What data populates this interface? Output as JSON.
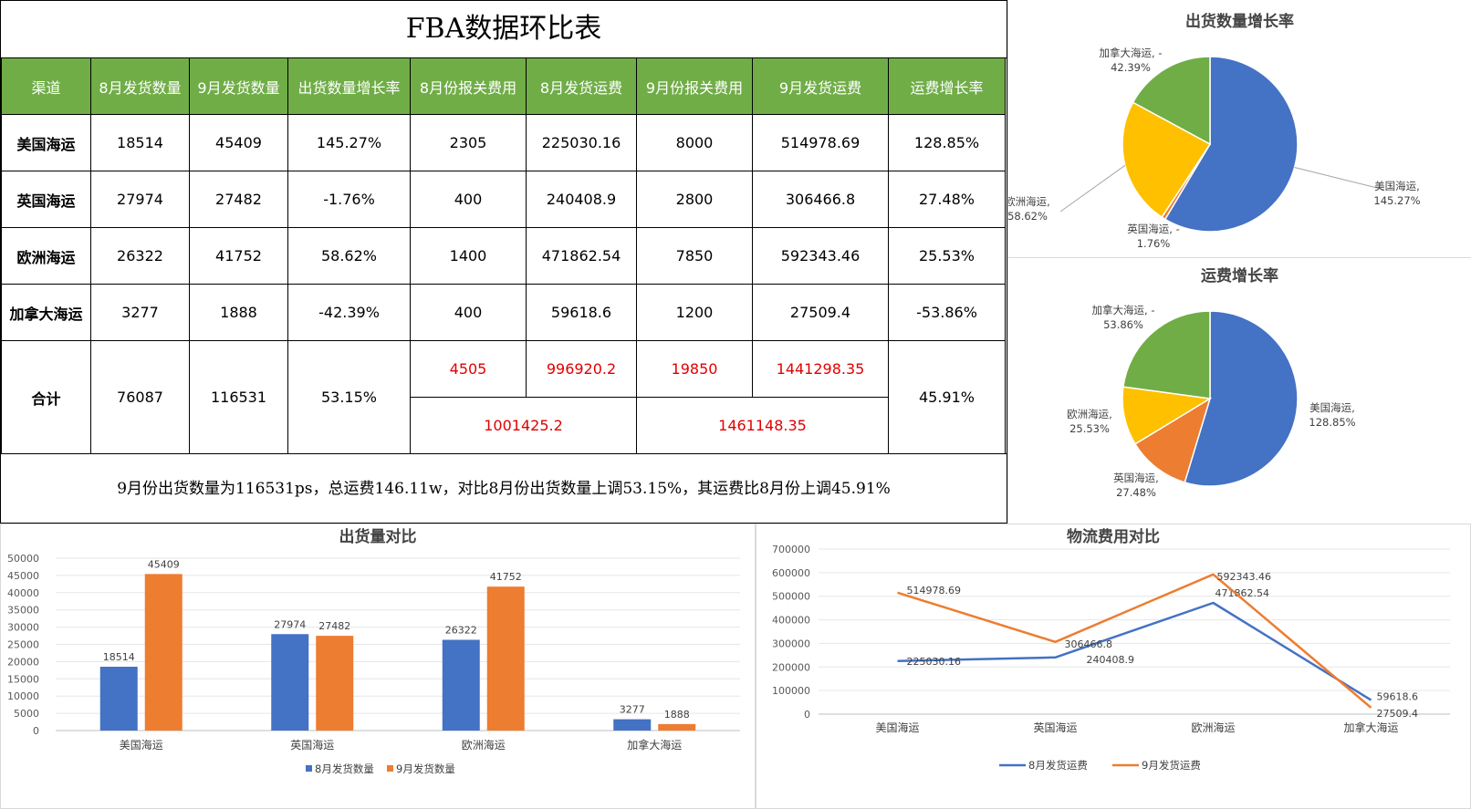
{
  "table": {
    "title": "FBA数据环比表",
    "headers": [
      "渠道",
      "8月发货数量",
      "9月发货数量",
      "出货数量增长率",
      "8月份报关费用",
      "8月发货运费",
      "9月份报关费用",
      "9月发货运费",
      "运费增长率"
    ],
    "rows": [
      [
        "美国海运",
        "18514",
        "45409",
        "145.27%",
        "2305",
        "225030.16",
        "8000",
        "514978.69",
        "128.85%"
      ],
      [
        "英国海运",
        "27974",
        "27482",
        "-1.76%",
        "400",
        "240408.9",
        "2800",
        "306466.8",
        "27.48%"
      ],
      [
        "欧洲海运",
        "26322",
        "41752",
        "58.62%",
        "1400",
        "471862.54",
        "7850",
        "592343.46",
        "25.53%"
      ],
      [
        "加拿大海运",
        "3277",
        "1888",
        "-42.39%",
        "400",
        "59618.6",
        "1200",
        "27509.4",
        "-53.86%"
      ]
    ],
    "total": {
      "label": "合计",
      "aug_qty": "76087",
      "sep_qty": "116531",
      "qty_growth": "53.15%",
      "aug_customs": "4505",
      "aug_freight": "996920.2",
      "sep_customs": "19850",
      "sep_freight": "1441298.35",
      "aug_sum": "1001425.2",
      "sep_sum": "1461148.35",
      "freight_growth": "45.91%"
    },
    "summary": "9月份出货数量为116531ps，总运费146.11w，对比8月份出货数量上调53.15%，其运费比8月份上调45.91%"
  },
  "colors": {
    "blue": "#4472c4",
    "orange": "#ed7d31",
    "gray": "#a5a5a5",
    "yellow": "#ffc000",
    "green": "#70ad47",
    "header_green": "#70ad47",
    "red": "#e00000"
  },
  "chart_data": [
    {
      "type": "pie",
      "title": "出货数量增长率",
      "labels": [
        "美国海运",
        "英国海运",
        "欧洲海运",
        "加拿大海运"
      ],
      "values": [
        145.27,
        -1.76,
        58.62,
        -42.39
      ],
      "display_labels": [
        [
          "美国海运,",
          "145.27%"
        ],
        [
          "英国海运, -",
          "1.76%"
        ],
        [
          "欧洲海运,",
          "58.62%"
        ],
        [
          "加拿大海运, -",
          "42.39%"
        ]
      ],
      "colors": [
        "#4472c4",
        "#ed7d31",
        "#ffc000",
        "#70ad47"
      ]
    },
    {
      "type": "pie",
      "title": "运费增长率",
      "labels": [
        "美国海运",
        "英国海运",
        "欧洲海运",
        "加拿大海运"
      ],
      "values": [
        128.85,
        27.48,
        25.53,
        -53.86
      ],
      "display_labels": [
        [
          "美国海运,",
          "128.85%"
        ],
        [
          "英国海运,",
          "27.48%"
        ],
        [
          "欧洲海运,",
          "25.53%"
        ],
        [
          "加拿大海运, -",
          "53.86%"
        ]
      ],
      "colors": [
        "#4472c4",
        "#ed7d31",
        "#ffc000",
        "#70ad47"
      ]
    },
    {
      "type": "bar",
      "title": "出货量对比",
      "categories": [
        "美国海运",
        "英国海运",
        "欧洲海运",
        "加拿大海运"
      ],
      "series": [
        {
          "name": "8月发货数量",
          "values": [
            18514,
            27974,
            26322,
            3277
          ],
          "color": "#4472c4"
        },
        {
          "name": "9月发货数量",
          "values": [
            45409,
            27482,
            41752,
            1888
          ],
          "color": "#ed7d31"
        }
      ],
      "ylim": [
        0,
        50000
      ],
      "yticks": [
        0,
        5000,
        10000,
        15000,
        20000,
        25000,
        30000,
        35000,
        40000,
        45000,
        50000
      ],
      "grid": true,
      "legend": "bottom"
    },
    {
      "type": "line",
      "title": "物流费用对比",
      "categories": [
        "美国海运",
        "英国海运",
        "欧洲海运",
        "加拿大海运"
      ],
      "series": [
        {
          "name": "8月发货运费",
          "values": [
            225030.16,
            240408.9,
            471862.54,
            59618.6
          ],
          "color": "#4472c4"
        },
        {
          "name": "9月发货运费",
          "values": [
            514978.69,
            306466.8,
            592343.46,
            27509.4
          ],
          "color": "#ed7d31"
        }
      ],
      "ylim": [
        0,
        700000
      ],
      "yticks": [
        0,
        100000,
        200000,
        300000,
        400000,
        500000,
        600000,
        700000
      ],
      "grid": true,
      "legend": "bottom"
    }
  ]
}
